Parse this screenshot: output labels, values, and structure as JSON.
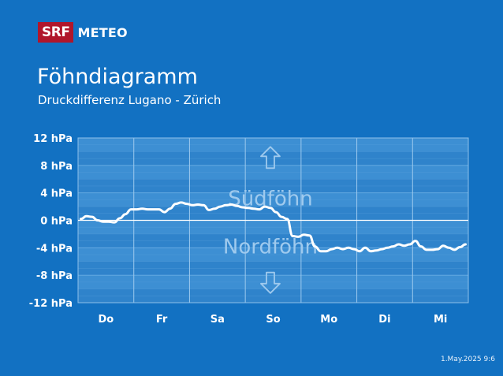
{
  "brand": {
    "srf": "SRF",
    "meteo": "METEO"
  },
  "header": {
    "title": "Föhndiagramm",
    "subtitle": "Druckdifferenz Lugano - Zürich"
  },
  "timestamp": "1.May.2025 9:6",
  "colors": {
    "background": "#1271c2",
    "plot_band_light": "#3d8fd3",
    "plot_band_dark": "#2f83cb",
    "line": "#ffffff",
    "zone_label": "#9fcaee",
    "logo_red": "#b0162b"
  },
  "icons": {
    "up": "arrow-up-icon",
    "down": "arrow-down-icon"
  },
  "chart_data": {
    "type": "line",
    "title": "Föhndiagramm",
    "subtitle": "Druckdifferenz Lugano - Zürich",
    "ylim": [
      -12,
      12
    ],
    "yticks": [
      12,
      8,
      4,
      0,
      -4,
      -8,
      -12
    ],
    "ytick_labels": [
      "12 hPa",
      "8 hPa",
      "4 hPa",
      "0 hPa",
      "-4 hPa",
      "-8 hPa",
      "-12 hPa"
    ],
    "xlim": [
      0,
      7
    ],
    "categories": [
      "Do",
      "Fr",
      "Sa",
      "So",
      "Mo",
      "Di",
      "Mi"
    ],
    "grid": true,
    "zone_labels": {
      "positive": "Südföhn",
      "negative": "Nordföhn"
    },
    "series": [
      {
        "x": [
          0.05,
          0.15,
          0.25,
          0.35,
          0.45,
          0.55,
          0.65,
          0.75,
          0.85,
          0.95,
          1.05,
          1.15,
          1.25,
          1.35,
          1.45,
          1.55,
          1.65,
          1.75,
          1.85,
          1.95,
          2.05,
          2.15,
          2.25,
          2.35,
          2.45,
          2.55,
          2.65,
          2.75,
          2.85,
          2.95,
          3.05,
          3.15,
          3.25,
          3.35,
          3.45,
          3.55,
          3.65,
          3.75,
          3.85,
          3.95,
          4.05,
          4.15,
          4.25,
          4.35,
          4.45,
          4.55,
          4.65,
          4.75,
          4.85,
          4.95,
          5.05,
          5.15,
          5.25,
          5.35,
          5.45,
          5.55,
          5.65,
          5.75,
          5.85,
          5.95,
          6.05,
          6.15,
          6.25,
          6.35,
          6.45,
          6.55,
          6.65,
          6.75,
          6.85,
          6.95
        ],
        "y": [
          0.2,
          0.6,
          0.5,
          0.0,
          -0.2,
          -0.2,
          -0.3,
          0.3,
          0.9,
          1.6,
          1.6,
          1.7,
          1.6,
          1.6,
          1.6,
          1.2,
          1.7,
          2.4,
          2.6,
          2.4,
          2.2,
          2.3,
          2.2,
          1.5,
          1.7,
          2.0,
          2.2,
          2.3,
          2.1,
          1.9,
          1.8,
          1.7,
          1.6,
          2.0,
          1.8,
          1.2,
          0.5,
          0.2,
          -2.3,
          -2.4,
          -2.1,
          -2.2,
          -3.8,
          -4.5,
          -4.5,
          -4.2,
          -4.0,
          -4.2,
          -4.0,
          -4.2,
          -4.5,
          -4.0,
          -4.5,
          -4.4,
          -4.2,
          -4.0,
          -3.8,
          -3.5,
          -3.7,
          -3.5,
          -3.0,
          -3.8,
          -4.3,
          -4.3,
          -4.2,
          -3.7,
          -4.0,
          -4.3,
          -3.9,
          -3.5
        ]
      }
    ]
  }
}
